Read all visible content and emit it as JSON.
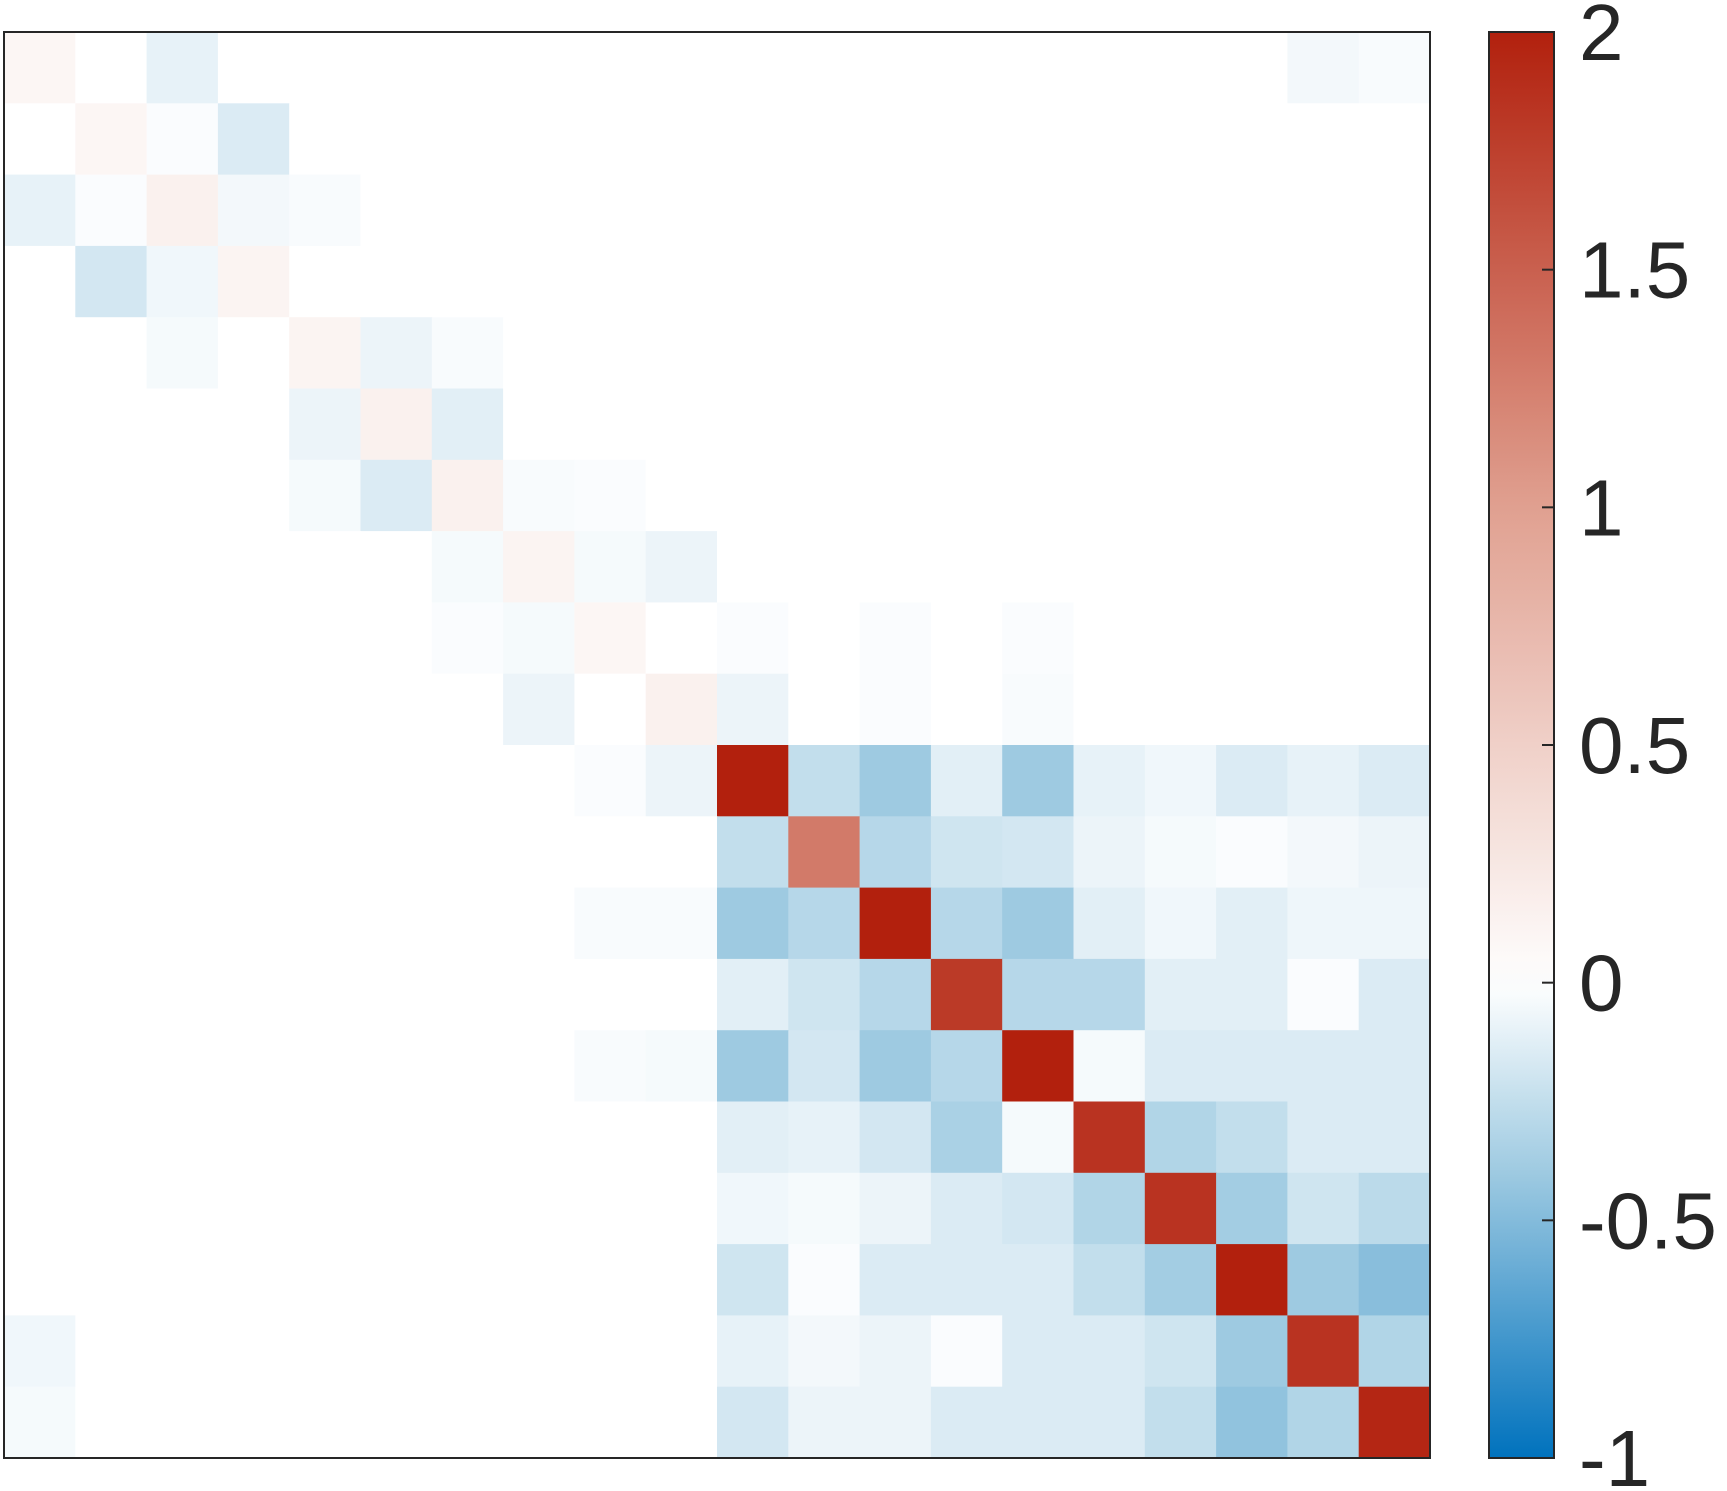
{
  "chart_data": {
    "type": "heatmap",
    "title": "",
    "xlabel": "",
    "ylabel": "",
    "rows": 20,
    "cols": 20,
    "show_axis_ticks": false,
    "grid": false,
    "values": [
      [
        0.1,
        0,
        -0.1,
        0,
        0,
        0,
        0,
        0,
        0,
        0,
        0,
        0,
        0,
        0,
        0,
        0,
        0,
        0,
        -0.05,
        -0.03
      ],
      [
        0,
        0.1,
        -0.02,
        -0.15,
        0,
        0,
        0,
        0,
        0,
        0,
        0,
        0,
        0,
        0,
        0,
        0,
        0,
        0,
        0,
        0
      ],
      [
        -0.1,
        -0.02,
        0.15,
        -0.05,
        -0.03,
        0,
        0,
        0,
        0,
        0,
        0,
        0,
        0,
        0,
        0,
        0,
        0,
        0,
        0,
        0
      ],
      [
        0,
        -0.18,
        -0.06,
        0.12,
        0,
        0,
        0,
        0,
        0,
        0,
        0,
        0,
        0,
        0,
        0,
        0,
        0,
        0,
        0,
        0
      ],
      [
        0,
        0,
        -0.04,
        0,
        0.12,
        -0.08,
        -0.03,
        0,
        0,
        0,
        0,
        0,
        0,
        0,
        0,
        0,
        0,
        0,
        0,
        0
      ],
      [
        0,
        0,
        0,
        0,
        -0.08,
        0.15,
        -0.12,
        0,
        0,
        0,
        0,
        0,
        0,
        0,
        0,
        0,
        0,
        0,
        0,
        0
      ],
      [
        0,
        0,
        0,
        0,
        -0.04,
        -0.15,
        0.15,
        -0.03,
        -0.02,
        0,
        0,
        0,
        0,
        0,
        0,
        0,
        0,
        0,
        0,
        0
      ],
      [
        0,
        0,
        0,
        0,
        0,
        0,
        -0.04,
        0.12,
        -0.04,
        -0.08,
        0,
        0,
        0,
        0,
        0,
        0,
        0,
        0,
        0,
        0
      ],
      [
        0,
        0,
        0,
        0,
        0,
        0,
        -0.02,
        -0.04,
        0.1,
        0,
        -0.02,
        0,
        -0.02,
        0,
        -0.02,
        0,
        0,
        0,
        0,
        0
      ],
      [
        0,
        0,
        0,
        0,
        0,
        0,
        0,
        -0.08,
        0,
        0.15,
        -0.08,
        0,
        -0.02,
        0,
        -0.03,
        0,
        0,
        0,
        0,
        0
      ],
      [
        0,
        0,
        0,
        0,
        0,
        0,
        0,
        0,
        -0.02,
        -0.08,
        2.0,
        -0.25,
        -0.4,
        -0.12,
        -0.4,
        -0.1,
        -0.06,
        -0.15,
        -0.1,
        -0.15
      ],
      [
        0,
        0,
        0,
        0,
        0,
        0,
        0,
        0,
        0,
        0,
        -0.25,
        1.3,
        -0.3,
        -0.2,
        -0.18,
        -0.08,
        -0.04,
        -0.02,
        -0.05,
        -0.08
      ],
      [
        0,
        0,
        0,
        0,
        0,
        0,
        0,
        0,
        -0.03,
        -0.03,
        -0.4,
        -0.3,
        2.0,
        -0.3,
        -0.4,
        -0.12,
        -0.06,
        -0.12,
        -0.07,
        -0.07
      ],
      [
        0,
        0,
        0,
        0,
        0,
        0,
        0,
        0,
        0,
        0,
        -0.12,
        -0.2,
        -0.3,
        1.8,
        -0.3,
        -0.3,
        -0.12,
        -0.12,
        -0.02,
        -0.15
      ],
      [
        0,
        0,
        0,
        0,
        0,
        0,
        0,
        0,
        -0.03,
        -0.04,
        -0.4,
        -0.18,
        -0.4,
        -0.3,
        2.0,
        -0.04,
        -0.15,
        -0.15,
        -0.15,
        -0.15
      ],
      [
        0,
        0,
        0,
        0,
        0,
        0,
        0,
        0,
        0,
        0,
        -0.12,
        -0.1,
        -0.18,
        -0.35,
        -0.04,
        1.85,
        -0.32,
        -0.25,
        -0.15,
        -0.15
      ],
      [
        0,
        0,
        0,
        0,
        0,
        0,
        0,
        0,
        0,
        0,
        -0.06,
        -0.04,
        -0.08,
        -0.15,
        -0.18,
        -0.32,
        1.85,
        -0.38,
        -0.2,
        -0.28
      ],
      [
        0,
        0,
        0,
        0,
        0,
        0,
        0,
        0,
        0,
        0,
        -0.2,
        -0.02,
        -0.15,
        -0.15,
        -0.15,
        -0.25,
        -0.38,
        2.0,
        -0.4,
        -0.48
      ],
      [
        -0.06,
        0,
        0,
        0,
        0,
        0,
        0,
        0,
        0,
        0,
        -0.1,
        -0.05,
        -0.08,
        -0.02,
        -0.15,
        -0.15,
        -0.2,
        -0.4,
        1.85,
        -0.32
      ],
      [
        -0.04,
        0,
        0,
        0,
        0,
        0,
        0,
        0,
        0,
        0,
        -0.18,
        -0.08,
        -0.08,
        -0.15,
        -0.15,
        -0.15,
        -0.25,
        -0.45,
        -0.32,
        1.95
      ]
    ],
    "colorbar": {
      "min": -1,
      "max": 2,
      "tick_labels": [
        "-1",
        "-0.5",
        "0",
        "0.5",
        "1",
        "1.5",
        "2"
      ],
      "tick_values": [
        -1,
        -0.5,
        0,
        0.5,
        1,
        1.5,
        2
      ],
      "colors": {
        "negative_end": "#0072bd",
        "negative_light": "#9ecae1",
        "zero": "#ffffff",
        "positive_mid": "#e0a090",
        "positive_end": "#b2200d"
      }
    }
  }
}
